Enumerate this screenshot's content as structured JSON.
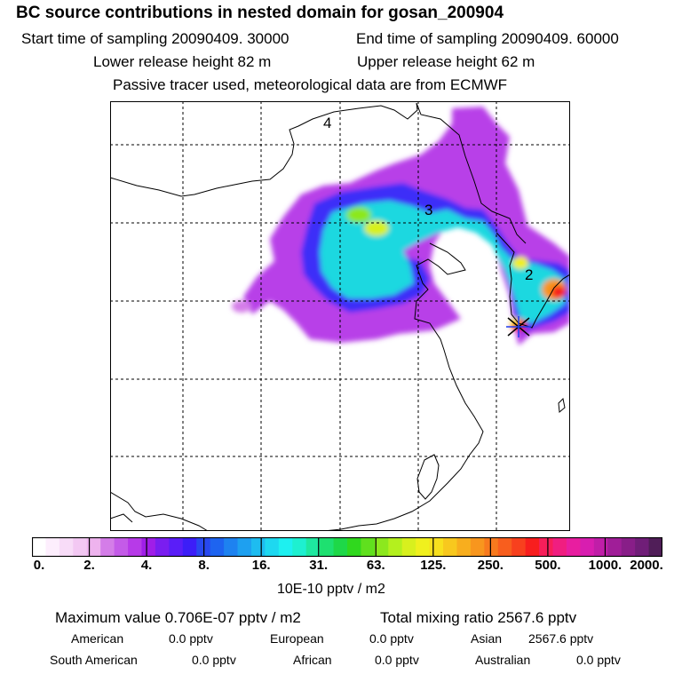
{
  "header": {
    "title": "BC  source contributions in nested domain for gosan_200904",
    "start_time": "Start time of sampling 20090409. 30000",
    "end_time": "End time of sampling 20090409. 60000",
    "lower_release": "Lower release height   82 m",
    "upper_release": "Upper release height   62 m",
    "tracer_info": "Passive tracer used, meteorological data are from ECMWF"
  },
  "map": {
    "region_labels": [
      "4",
      "3",
      "2"
    ],
    "colors": {
      "outline": "#000000",
      "grid": "#000000"
    }
  },
  "colorbar": {
    "tick_labels": [
      "0.",
      "2.",
      "4.",
      "8.",
      "16.",
      "31.",
      "63.",
      "125.",
      "250.",
      "500.",
      "1000.",
      "2000."
    ],
    "unit": "10E-10 pptv / m2",
    "colors": [
      "#ffffff",
      "#fdeefd",
      "#f8dcf8",
      "#f3c8f3",
      "#eeb3ee",
      "#d47de8",
      "#c45be8",
      "#b73ae8",
      "#a01ee8",
      "#7a1ef0",
      "#5a1ef8",
      "#3c1ef8",
      "#2848f0",
      "#1e64f0",
      "#1e82f0",
      "#1ea0f0",
      "#1ebcf0",
      "#1ed8f0",
      "#1ef0f0",
      "#1ef0d0",
      "#1ee8a0",
      "#1ee070",
      "#1ed848",
      "#30d81e",
      "#60e01e",
      "#8ce81e",
      "#b4f01e",
      "#d8f01e",
      "#f0f01e",
      "#f8e01e",
      "#f8c81e",
      "#f8ae1e",
      "#f8961e",
      "#f87a1e",
      "#f85e1e",
      "#f8401e",
      "#f81e1e",
      "#f81e5a",
      "#f01e80",
      "#e81ea0",
      "#d81eb0",
      "#c01ea8",
      "#a01e98",
      "#881e88",
      "#701e78",
      "#501e58"
    ]
  },
  "stats": {
    "maximum": "Maximum value  0.706E-07 pptv / m2",
    "total_mixing": "Total mixing ratio     2567.6 pptv",
    "contributions": [
      {
        "name": "American",
        "value": "0.0 pptv"
      },
      {
        "name": "European",
        "value": "0.0 pptv"
      },
      {
        "name": "Asian",
        "value": "2567.6 pptv"
      },
      {
        "name": "South American",
        "value": "0.0 pptv"
      },
      {
        "name": "African",
        "value": "0.0 pptv"
      },
      {
        "name": "Australian",
        "value": "0.0 pptv"
      }
    ]
  }
}
